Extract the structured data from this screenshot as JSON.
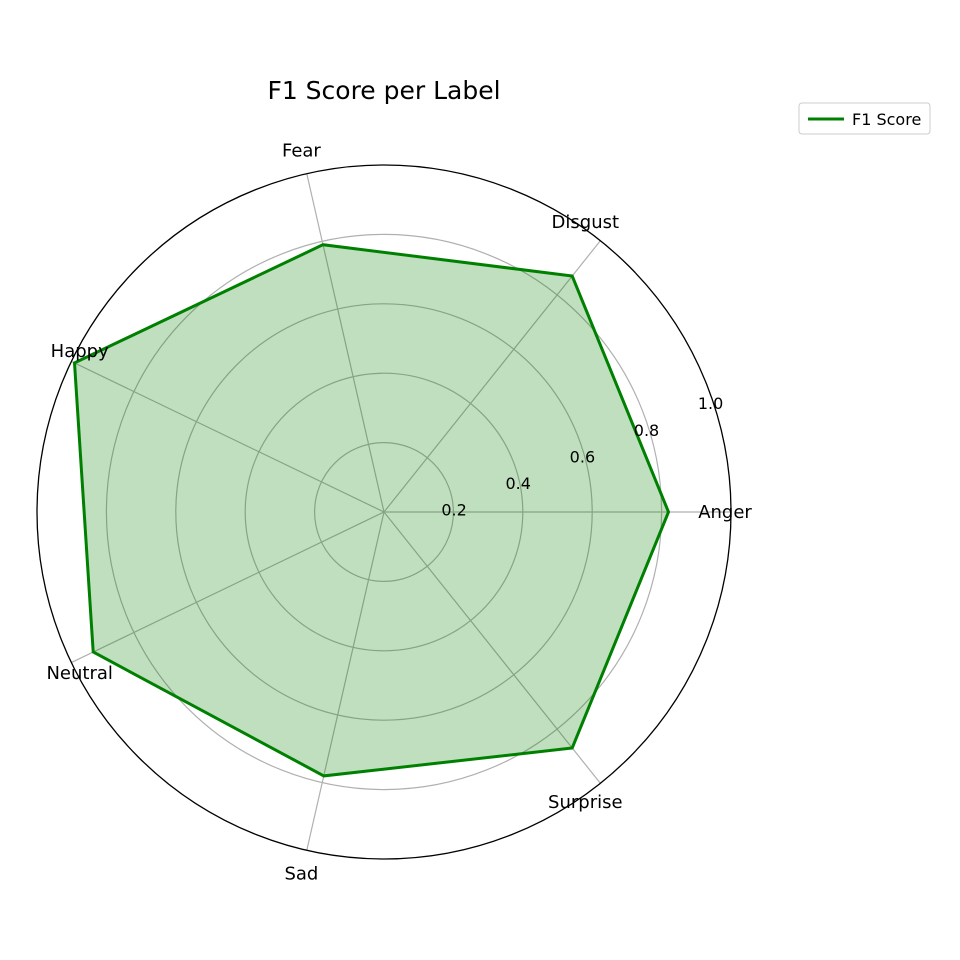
{
  "chart_data": {
    "type": "radar",
    "title": "F1 Score per Label",
    "categories": [
      "Anger",
      "Disgust",
      "Fear",
      "Happy",
      "Neutral",
      "Sad",
      "Surprise"
    ],
    "series": [
      {
        "name": "F1 Score",
        "values": [
          0.82,
          0.87,
          0.79,
          0.99,
          0.93,
          0.78,
          0.87
        ],
        "line_color": "#008000",
        "fill_color": "#008000",
        "fill_opacity": 0.25
      }
    ],
    "radial_ticks": [
      "0.2",
      "0.4",
      "0.6",
      "0.8",
      "1.0"
    ],
    "radial_tick_values": [
      0.2,
      0.4,
      0.6,
      0.8,
      1.0
    ],
    "rlim": [
      0,
      1.0
    ],
    "grid": true,
    "legend_position": "top-right",
    "grid_color": "#b0b0b0",
    "frame_color": "#000000"
  }
}
